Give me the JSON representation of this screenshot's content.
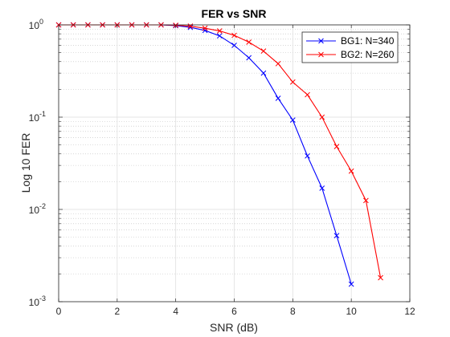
{
  "chart_data": {
    "type": "line",
    "title": "FER vs SNR",
    "xlabel": "SNR (dB)",
    "ylabel": "Log 10 FER",
    "xlim": [
      0,
      12
    ],
    "ylim": [
      0.001,
      1
    ],
    "yscale": "log",
    "grid": true,
    "legend_position": "top-right",
    "x_ticks": [
      "0",
      "2",
      "4",
      "6",
      "8",
      "10",
      "12"
    ],
    "y_ticks": [
      {
        "base": "10",
        "exp": "-3",
        "value": 0.001
      },
      {
        "base": "10",
        "exp": "-2",
        "value": 0.01
      },
      {
        "base": "10",
        "exp": "-1",
        "value": 0.1
      },
      {
        "base": "10",
        "exp": "0",
        "value": 1
      }
    ],
    "series": [
      {
        "name": "BG1: N=340",
        "color": "#0000ff",
        "marker": "x",
        "x": [
          0,
          0.5,
          1,
          1.5,
          2,
          2.5,
          3,
          3.5,
          4,
          4.5,
          5,
          5.5,
          6,
          6.5,
          7,
          7.5,
          8,
          8.5,
          9,
          9.5,
          10
        ],
        "y": [
          1,
          1,
          1,
          1,
          1,
          1,
          1,
          1,
          0.98,
          0.94,
          0.87,
          0.76,
          0.6,
          0.44,
          0.3,
          0.16,
          0.093,
          0.038,
          0.017,
          0.0052,
          0.00155
        ]
      },
      {
        "name": "BG2: N=260",
        "color": "#ff0000",
        "marker": "x",
        "x": [
          0,
          0.5,
          1,
          1.5,
          2,
          2.5,
          3,
          3.5,
          4,
          4.5,
          5,
          5.5,
          6,
          6.5,
          7,
          7.5,
          8,
          8.5,
          9,
          9.5,
          10,
          10.5,
          11
        ],
        "y": [
          1,
          1,
          1,
          1,
          1,
          1,
          1,
          1,
          0.99,
          0.97,
          0.92,
          0.86,
          0.77,
          0.65,
          0.52,
          0.38,
          0.24,
          0.175,
          0.1,
          0.048,
          0.026,
          0.0125,
          0.00182
        ]
      }
    ]
  }
}
